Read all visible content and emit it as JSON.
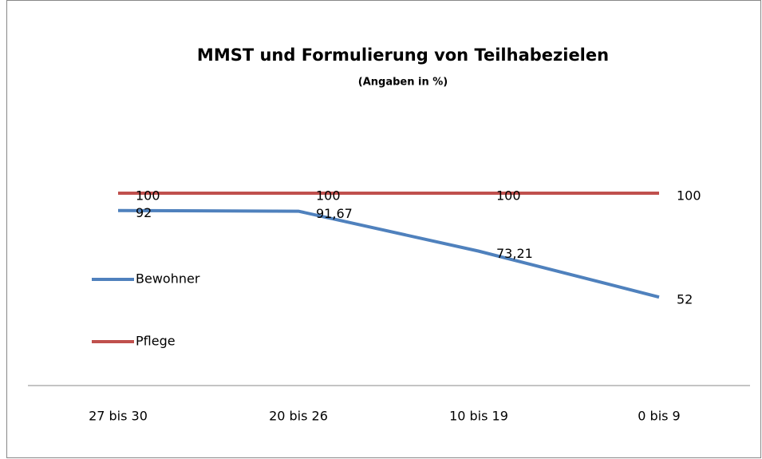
{
  "chart_data": {
    "type": "line",
    "title": "MMST und Formulierung von Teilhabezielen",
    "subtitle": "(Angaben in %)",
    "categories": [
      "27 bis 30",
      "20 bis 26",
      "10 bis 19",
      "0 bis 9"
    ],
    "series": [
      {
        "name": "Bewohner",
        "color": "#4f81bd",
        "values": [
          92,
          91.67,
          73.21,
          52
        ],
        "value_labels": [
          "92",
          "91,67",
          "73,21",
          "52"
        ]
      },
      {
        "name": "Pflege",
        "color": "#c0504d",
        "values": [
          100,
          100,
          100,
          100
        ]
      }
    ],
    "ylim": [
      10,
      100
    ],
    "legend": "left"
  }
}
